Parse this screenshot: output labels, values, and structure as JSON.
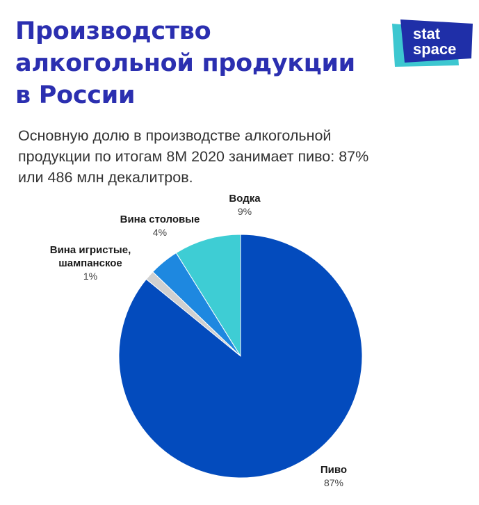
{
  "header": {
    "title_lines": [
      "Производство",
      "алкогольной продукции",
      "в России"
    ],
    "subtitle_lines": [
      "Основную долю в производстве алкогольной",
      "продукции по итогам 8М 2020 занимает пиво: 87%",
      "или 486 млн декалитров."
    ]
  },
  "logo": {
    "line1": "stat",
    "line2": "space"
  },
  "colors": {
    "title": "#2b2fb0",
    "logo_back": "#3dc7d0",
    "logo_front": "#1f2fa8"
  },
  "chart_data": {
    "type": "pie",
    "title": "",
    "start": "12 o'clock",
    "direction": "counterclockwise",
    "slices": [
      {
        "name_lines": [
          "Водка"
        ],
        "value": 9,
        "label": "9%",
        "color": "#3ecdd4"
      },
      {
        "name_lines": [
          "Вина столовые"
        ],
        "value": 4,
        "label": "4%",
        "color": "#1e88e0"
      },
      {
        "name_lines": [
          "Вина игристые,",
          "шампанское"
        ],
        "value": 1.3,
        "label": "1%",
        "color": "#d0d0d0"
      },
      {
        "name_lines": [
          "Пиво"
        ],
        "value": 87,
        "label": "87%",
        "color": "#034bbd"
      }
    ]
  }
}
